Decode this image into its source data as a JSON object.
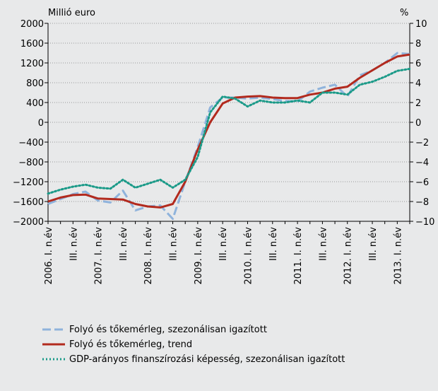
{
  "chart_data": {
    "type": "line",
    "y_label": "Millió euro",
    "y2_label": "%",
    "categories": [
      "2006. I. n.év",
      null,
      "III. n.év",
      null,
      "2007. I. n.év",
      null,
      "III. n.év",
      null,
      "2008. I. n.év",
      null,
      "III. n.év",
      null,
      "2009. I. n.év",
      null,
      "III. n.év",
      null,
      "2010. I. n.év",
      null,
      "III. n.év",
      null,
      "2011. I. n.év",
      null,
      "III. n.év",
      null,
      "2012. I. n.év",
      null,
      "III. n.év",
      null,
      "2013. I. n.év",
      null
    ],
    "series": [
      {
        "name": "Folyó és tőkemérleg, szezonálisan igazított",
        "color": "#8fb3dc",
        "style": "dashed",
        "values": [
          -1650,
          -1550,
          -1450,
          -1400,
          -1580,
          -1620,
          -1380,
          -1780,
          -1700,
          -1680,
          -1950,
          -1200,
          -500,
          300,
          500,
          500,
          480,
          500,
          470,
          430,
          420,
          620,
          700,
          760,
          520,
          950,
          1050,
          1200,
          1400,
          1380
        ]
      },
      {
        "name": "Folyó és tőkemérleg, trend",
        "color": "#b22a1e",
        "style": "solid",
        "values": [
          -1600,
          -1520,
          -1470,
          -1460,
          -1540,
          -1550,
          -1560,
          -1650,
          -1700,
          -1720,
          -1650,
          -1200,
          -550,
          0,
          380,
          500,
          520,
          530,
          500,
          490,
          490,
          560,
          600,
          680,
          720,
          900,
          1050,
          1200,
          1330,
          1370
        ]
      },
      {
        "name": "GDP-arányos finanszírozási képesség, szezonálisan igazított",
        "color": "#1a9a88",
        "style": "dotted",
        "axis": "y2",
        "values": [
          -7.2,
          -6.8,
          -6.5,
          -6.3,
          -6.6,
          -6.7,
          -5.8,
          -6.6,
          -6.2,
          -5.8,
          -6.6,
          -5.8,
          -3.5,
          1.0,
          2.6,
          2.4,
          1.6,
          2.2,
          2.0,
          2.0,
          2.2,
          2.0,
          3.0,
          3.0,
          2.8,
          3.8,
          4.1,
          4.6,
          5.2,
          5.4
        ]
      }
    ],
    "ylim": [
      -2000,
      2000
    ],
    "yticks": [
      {
        "value": -2000,
        "label": "−2000"
      },
      {
        "value": -1600,
        "label": "−1600"
      },
      {
        "value": -1200,
        "label": "−1200"
      },
      {
        "value": -800,
        "label": "−800"
      },
      {
        "value": -400,
        "label": "−400"
      },
      0,
      400,
      800,
      1200,
      1600,
      2000
    ],
    "y2lim": [
      -10,
      10
    ],
    "y2ticks": [
      {
        "value": -10,
        "label": "−10"
      },
      {
        "value": -8,
        "label": "−8"
      },
      {
        "value": -6,
        "label": "−6"
      },
      {
        "value": -4,
        "label": "−4"
      },
      {
        "value": -2,
        "label": "−2"
      },
      0,
      2,
      4,
      6,
      8,
      10
    ],
    "grid": true
  }
}
